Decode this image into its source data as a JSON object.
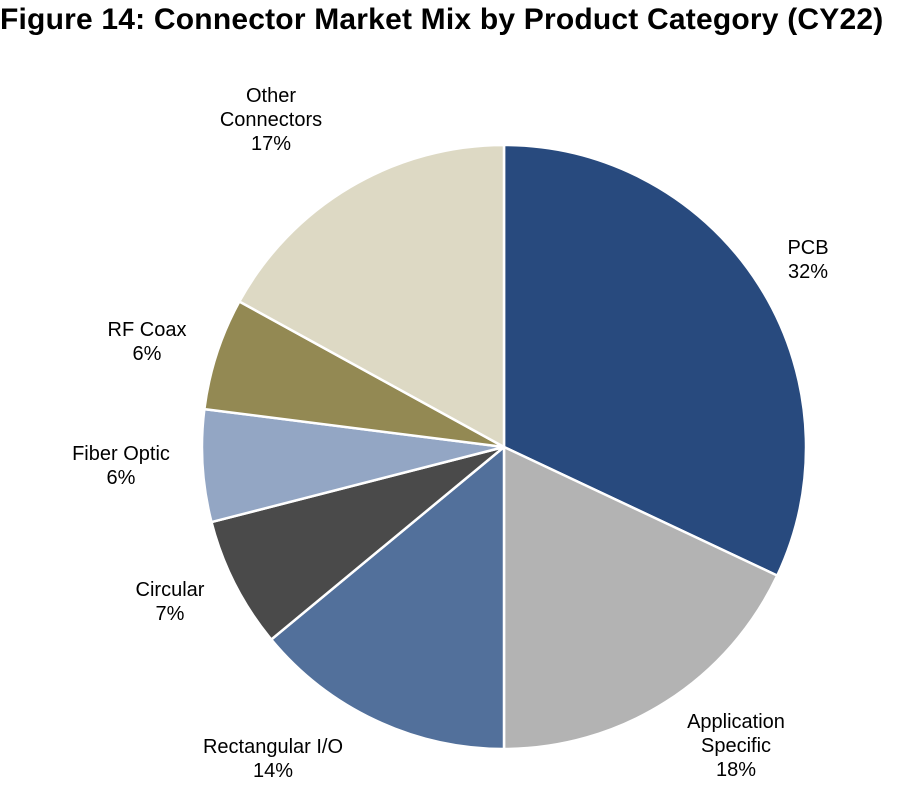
{
  "chart_data": {
    "type": "pie",
    "title": "Figure 14: Connector Market Mix by Product Category (CY22)",
    "start_angle_deg": 0,
    "direction": "clockwise",
    "slices": [
      {
        "name": "PCB",
        "label_lines": [
          "PCB"
        ],
        "value_label": "32%",
        "value": 32,
        "color": "#284a7e"
      },
      {
        "name": "Application Specific",
        "label_lines": [
          "Application",
          "Specific"
        ],
        "value_label": "18%",
        "value": 18,
        "color": "#b3b3b3"
      },
      {
        "name": "Rectangular I/O",
        "label_lines": [
          "Rectangular I/O"
        ],
        "value_label": "14%",
        "value": 14,
        "color": "#52709b"
      },
      {
        "name": "Circular",
        "label_lines": [
          "Circular"
        ],
        "value_label": "7%",
        "value": 7,
        "color": "#4a4a4a"
      },
      {
        "name": "Fiber Optic",
        "label_lines": [
          "Fiber Optic"
        ],
        "value_label": "6%",
        "value": 6,
        "color": "#93a6c4"
      },
      {
        "name": "RF Coax",
        "label_lines": [
          "RF Coax"
        ],
        "value_label": "6%",
        "value": 6,
        "color": "#938953"
      },
      {
        "name": "Other Connectors",
        "label_lines": [
          "Other",
          "Connectors"
        ],
        "value_label": "17%",
        "value": 17,
        "color": "#ddd9c4"
      }
    ]
  }
}
